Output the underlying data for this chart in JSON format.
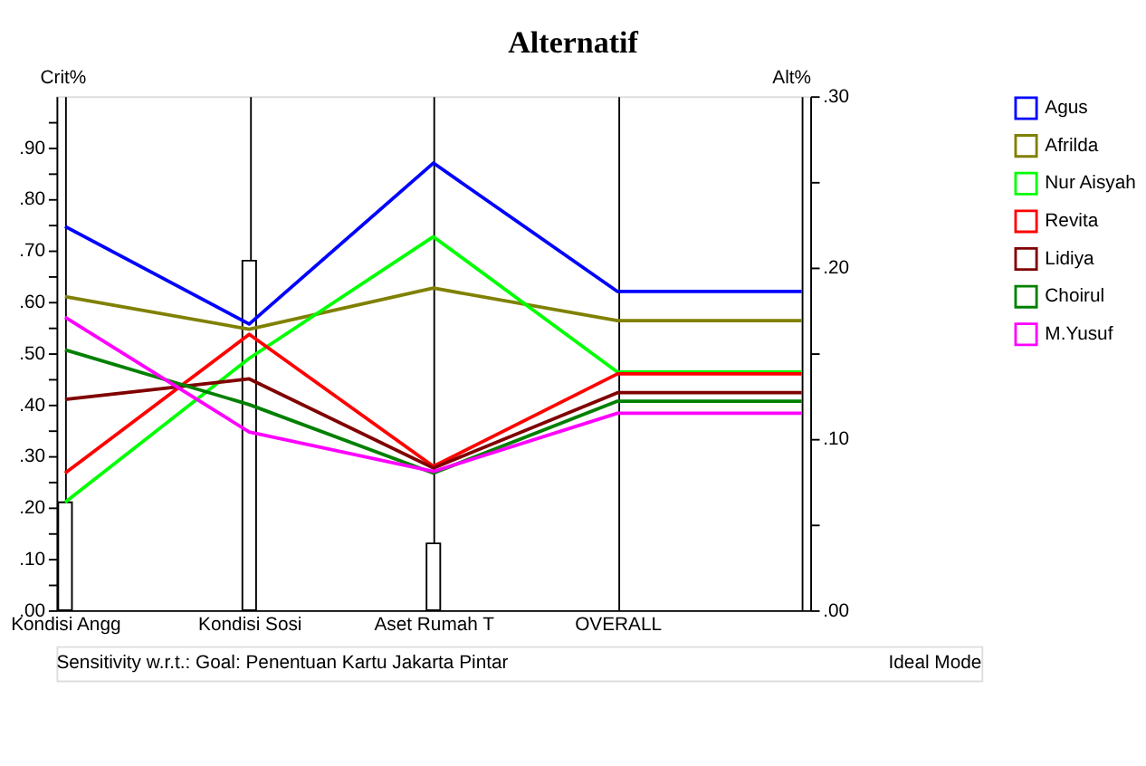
{
  "chart_data": {
    "type": "line",
    "title": "Alternatif",
    "ylabel": "Crit%",
    "y2label": "Alt%",
    "annotations": [
      "Sensitivity w.r.t.: Goal: Penentuan Kartu Jakarta Pintar",
      "Ideal Mode"
    ],
    "categories": [
      "Kondisi Angg",
      "Kondisi Sosi",
      "Aset Rumah T",
      "OVERALL",
      null
    ],
    "series": [
      {
        "type": "bar",
        "color": "#ffffff",
        "values": [
          0.21,
          0.68,
          0.13,
          null,
          null
        ]
      },
      {
        "name": "Agus",
        "color": "#0000ff",
        "axis": "y2",
        "values": [
          0.224,
          0.167,
          0.261,
          0.186,
          0.186
        ]
      },
      {
        "name": "Afrilda",
        "color": "#808000",
        "axis": "y2",
        "values": [
          0.183,
          0.164,
          0.188,
          0.169,
          0.169
        ]
      },
      {
        "name": "Nur Aisyah",
        "color": "#00ff00",
        "axis": "y2",
        "values": [
          0.063,
          0.147,
          0.218,
          0.139,
          0.139
        ]
      },
      {
        "name": "Revita",
        "color": "#ff0000",
        "axis": "y2",
        "values": [
          0.08,
          0.161,
          0.084,
          0.138,
          0.138
        ]
      },
      {
        "name": "Lidiya",
        "color": "#800000",
        "axis": "y2",
        "values": [
          0.123,
          0.135,
          0.083,
          0.127,
          0.127
        ]
      },
      {
        "name": "Choirul",
        "color": "#008000",
        "axis": "y2",
        "values": [
          0.152,
          0.12,
          0.08,
          0.122,
          0.122
        ]
      },
      {
        "name": "M.Yusuf",
        "color": "#ff00ff",
        "axis": "y2",
        "values": [
          0.171,
          0.104,
          0.081,
          0.115,
          0.115
        ]
      }
    ],
    "ylim": [
      0,
      1.0
    ],
    "yticks": [
      {
        "value": 0,
        "label": ".00"
      },
      {
        "value": 0.05,
        "label": null
      },
      {
        "value": 0.1,
        "label": ".10"
      },
      {
        "value": 0.15,
        "label": null
      },
      {
        "value": 0.2,
        "label": ".20"
      },
      {
        "value": 0.25,
        "label": null
      },
      {
        "value": 0.3,
        "label": ".30"
      },
      {
        "value": 0.35,
        "label": null
      },
      {
        "value": 0.4,
        "label": ".40"
      },
      {
        "value": 0.45,
        "label": null
      },
      {
        "value": 0.5,
        "label": ".50"
      },
      {
        "value": 0.55,
        "label": null
      },
      {
        "value": 0.6,
        "label": ".60"
      },
      {
        "value": 0.65,
        "label": null
      },
      {
        "value": 0.7,
        "label": ".70"
      },
      {
        "value": 0.75,
        "label": null
      },
      {
        "value": 0.8,
        "label": ".80"
      },
      {
        "value": 0.85,
        "label": null
      },
      {
        "value": 0.9,
        "label": ".90"
      },
      {
        "value": 0.95,
        "label": null
      }
    ],
    "y2lim": [
      0,
      0.3
    ],
    "y2ticks": [
      {
        "value": 0,
        "label": ".00"
      },
      {
        "value": 0.05,
        "label": null
      },
      {
        "value": 0.1,
        "label": ".10"
      },
      {
        "value": 0.15,
        "label": null
      },
      {
        "value": 0.2,
        "label": ".20"
      },
      {
        "value": 0.25,
        "label": null
      },
      {
        "value": 0.3,
        "label": ".30"
      }
    ],
    "grid": "x",
    "legend": "right"
  }
}
